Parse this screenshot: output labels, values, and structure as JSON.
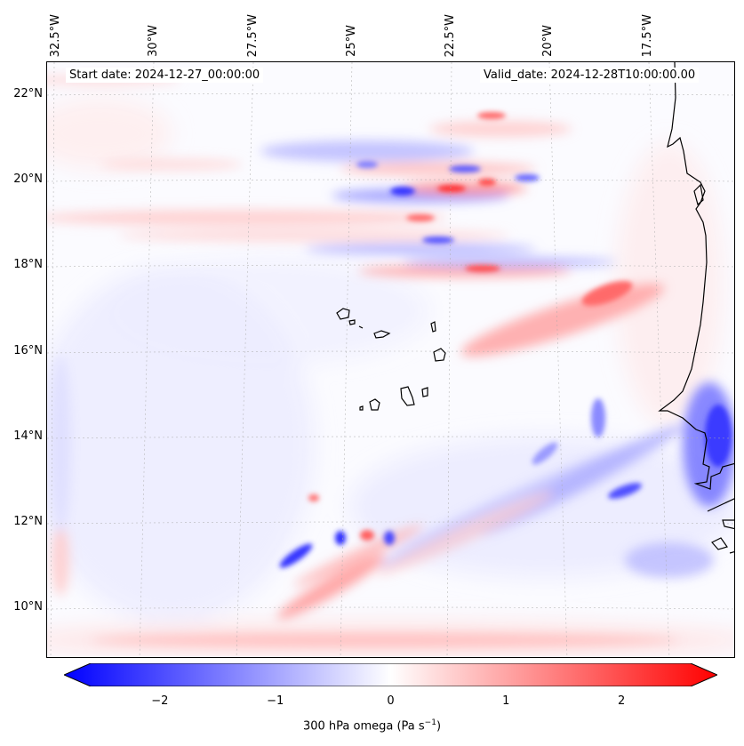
{
  "map": {
    "start_date": "Start date: 2024-12-27_00:00:00",
    "valid_date": "Valid_date: 2024-12-28T10:00:00.00",
    "lon_labels": [
      "32.5°W",
      "30°W",
      "27.5°W",
      "25°W",
      "22.5°W",
      "20°W",
      "17.5°W"
    ],
    "lat_labels": [
      "22°N",
      "20°N",
      "18°N",
      "16°N",
      "14°N",
      "12°N",
      "10°N"
    ],
    "variable": "300 hPa omega",
    "units_base": "(Pa s",
    "units_exp": "−1",
    "units_close": ")"
  },
  "colorbar": {
    "ticks": [
      "−2",
      "−1",
      "0",
      "1",
      "2"
    ],
    "min": -2.6,
    "max": 2.6,
    "neg_color": "#0000ff",
    "zero_color": "#ffffff",
    "pos_color": "#ff0000"
  }
}
